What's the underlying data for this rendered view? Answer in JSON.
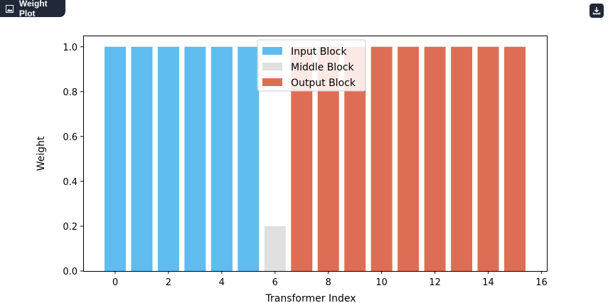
{
  "window": {
    "tab_title": "Weight Plot",
    "tab_icon": "image-icon",
    "download_icon": "download-icon"
  },
  "chart_data": {
    "type": "bar",
    "x": [
      0,
      1,
      2,
      3,
      4,
      5,
      6,
      7,
      8,
      9,
      10,
      11,
      12,
      13,
      14,
      15
    ],
    "values": [
      1.0,
      1.0,
      1.0,
      1.0,
      1.0,
      1.0,
      0.2,
      1.0,
      1.0,
      1.0,
      1.0,
      1.0,
      1.0,
      1.0,
      1.0,
      1.0
    ],
    "groups": [
      "input",
      "input",
      "input",
      "input",
      "input",
      "input",
      "middle",
      "output",
      "output",
      "output",
      "output",
      "output",
      "output",
      "output",
      "output",
      "output"
    ],
    "series": [
      {
        "key": "input",
        "name": "Input Block",
        "color": "#5fbcee"
      },
      {
        "key": "middle",
        "name": "Middle Block",
        "color": "#e0e0e0"
      },
      {
        "key": "output",
        "name": "Output Block",
        "color": "#dd6e55"
      }
    ],
    "xlabel": "Transformer Index",
    "ylabel": "Weight",
    "xlim": [
      -1.2,
      16.2
    ],
    "ylim": [
      0,
      1.05
    ],
    "xticks": [
      0,
      2,
      4,
      6,
      8,
      10,
      12,
      14,
      16
    ],
    "yticks": [
      0.0,
      0.2,
      0.4,
      0.6,
      0.8,
      1.0
    ],
    "ytick_labels": [
      "0.0",
      "0.2",
      "0.4",
      "0.6",
      "0.8",
      "1.0"
    ],
    "legend_position": "top-center",
    "grid": false
  }
}
